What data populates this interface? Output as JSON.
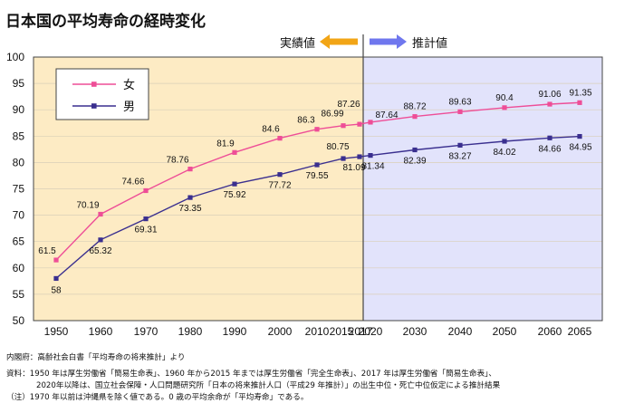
{
  "title": "日本国の平均寿命の経時変化",
  "zones": {
    "left_label": "実績値",
    "right_label": "推計値",
    "left_color": "#fdebc4",
    "right_color": "#e2e3fb",
    "arrow_left_color": "#f2a516",
    "arrow_right_color": "#6f77ee"
  },
  "notes": [
    "内閣府：高齢社会白書「平均寿命の将来推計」より",
    "資料：1950 年は厚生労働省「簡易生命表」、1960 年から2015 年までは厚生労働省「完全生命表」、2017 年は厚生労働省「簡易生命表」、",
    "2020年以降は、国立社会保障・人口問題研究所「日本の将来推計人口（平成29 年推計）」の出生中位・死亡中位仮定による推計結果",
    "（注）1970 年以前は沖縄県を除く値である。0 歳の平均余命が「平均寿命」である。"
  ],
  "chart_data": {
    "type": "line",
    "title": "日本国の平均寿命の経時変化",
    "xlabel": "",
    "ylabel": "",
    "ylim": [
      50,
      100
    ],
    "yticks": [
      50,
      55,
      60,
      65,
      70,
      75,
      80,
      85,
      90,
      95,
      100
    ],
    "grid": true,
    "legend": "top-left",
    "x": [
      "1950",
      "1960",
      "1970",
      "1980",
      "1990",
      "2000",
      "2010",
      "2015",
      "2017",
      "2020",
      "2030",
      "2040",
      "2050",
      "2060",
      "2065"
    ],
    "series": [
      {
        "name": "女",
        "color": "#ee4e97",
        "values": [
          61.5,
          70.19,
          74.66,
          78.76,
          81.9,
          84.6,
          86.3,
          86.99,
          87.26,
          87.64,
          88.72,
          89.63,
          90.4,
          91.06,
          91.35
        ],
        "labels": [
          "61.5",
          "70.19",
          "74.66",
          "78.76",
          "81.9",
          "84.6",
          "86.3",
          "86.99",
          "87.26",
          "87.64",
          "88.72",
          "89.63",
          "90.4",
          "91.06",
          "91.35"
        ]
      },
      {
        "name": "男",
        "color": "#3a2f8f",
        "values": [
          58,
          65.32,
          69.31,
          73.35,
          75.92,
          77.72,
          79.55,
          80.75,
          81.09,
          81.34,
          82.39,
          83.27,
          84.02,
          84.66,
          84.95
        ],
        "labels": [
          "58",
          "65.32",
          "69.31",
          "73.35",
          "75.92",
          "77.72",
          "79.55",
          "80.75",
          "81.09",
          "81.34",
          "82.39",
          "83.27",
          "84.02",
          "84.66",
          "84.95"
        ]
      }
    ]
  }
}
